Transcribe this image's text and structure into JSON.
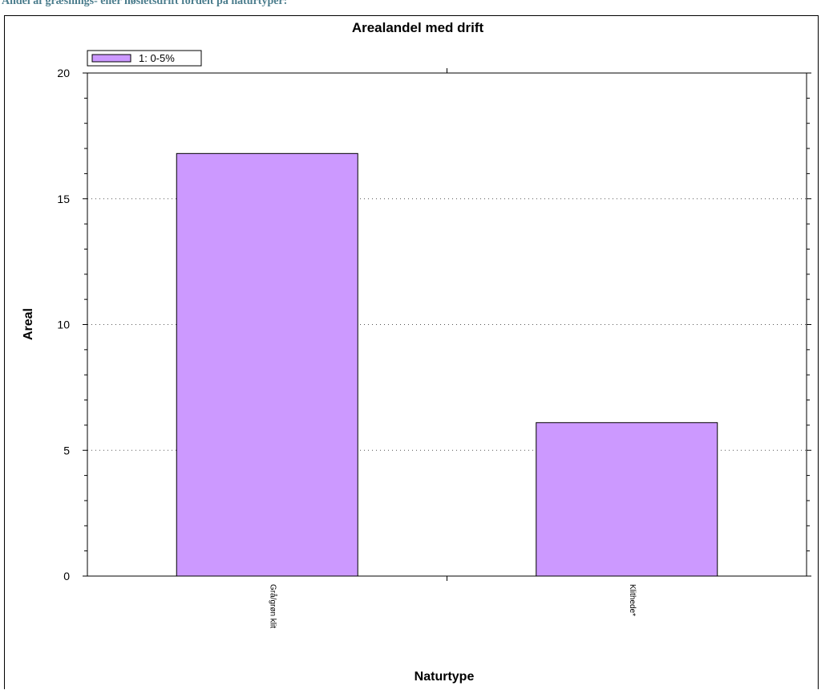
{
  "page": {
    "heading": "Andel af græsnings- eller høsletsdrift fordelt på naturtyper:"
  },
  "chart_data": {
    "type": "bar",
    "title": "Arealandel med drift",
    "xlabel": "Naturtype",
    "ylabel": "Areal",
    "categories": [
      "Grå/grøn klit",
      "Klithede*"
    ],
    "series": [
      {
        "name": "1: 0-5%",
        "values": [
          16.8,
          6.1
        ],
        "color": "#cc99ff"
      }
    ],
    "ylim": [
      0,
      20
    ],
    "yticks": [
      0,
      5,
      10,
      15,
      20
    ],
    "grid": "dotted horizontal",
    "legend": "top-left"
  }
}
